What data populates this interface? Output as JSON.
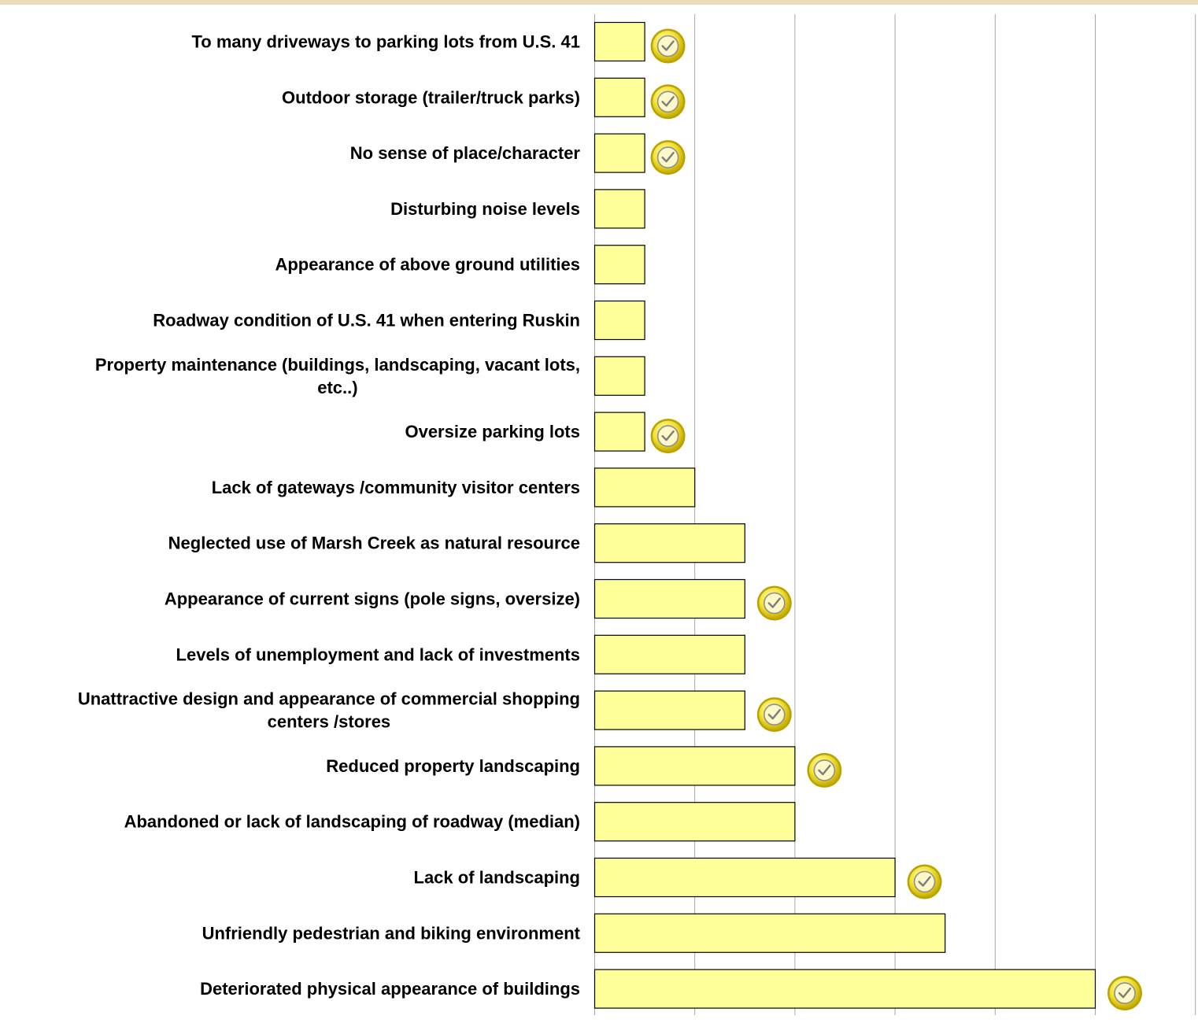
{
  "chart_data": {
    "type": "bar",
    "orientation": "horizontal",
    "categories": [
      "To many driveways  to parking lots from U.S. 41",
      "Outdoor storage (trailer/truck parks)",
      "No sense of place/character",
      "Disturbing noise levels",
      "Appearance of above ground utilities",
      "Roadway condition of U.S. 41 when entering Ruskin",
      [
        "Property maintenance (buildings, landscaping, vacant lots,",
        "etc..)"
      ],
      "Oversize parking lots",
      "Lack of gateways /community visitor centers",
      "Neglected use of Marsh Creek as natural resource",
      "Appearance of current signs (pole signs, oversize)",
      "Levels of unemployment and lack of investments",
      [
        "Unattractive design and appearance of commercial shopping",
        "centers /stores"
      ],
      "Reduced property landscaping",
      "Abandoned  or lack of landscaping of roadway (median)",
      "Lack of landscaping",
      "Unfriendly pedestrian and biking environment",
      "Deteriorated physical appearance of buildings"
    ],
    "values": [
      1,
      1,
      1,
      1,
      1,
      1,
      1,
      1,
      2,
      3,
      3,
      3,
      3,
      4,
      4,
      6,
      7,
      10
    ],
    "checkmarks": [
      true,
      true,
      true,
      false,
      false,
      false,
      false,
      true,
      false,
      false,
      true,
      false,
      true,
      true,
      false,
      true,
      false,
      true
    ],
    "xlim": [
      0,
      12
    ],
    "grid": true,
    "xlabel": "",
    "ylabel": "",
    "title": "",
    "colors": {
      "bar_fill": "#ffff99",
      "bar_stroke": "#000000",
      "grid": "#a6a6a6",
      "check_outer": "#b8a300",
      "check_inner": "#f7ec3a"
    },
    "check_icon": "check-circle-icon"
  }
}
